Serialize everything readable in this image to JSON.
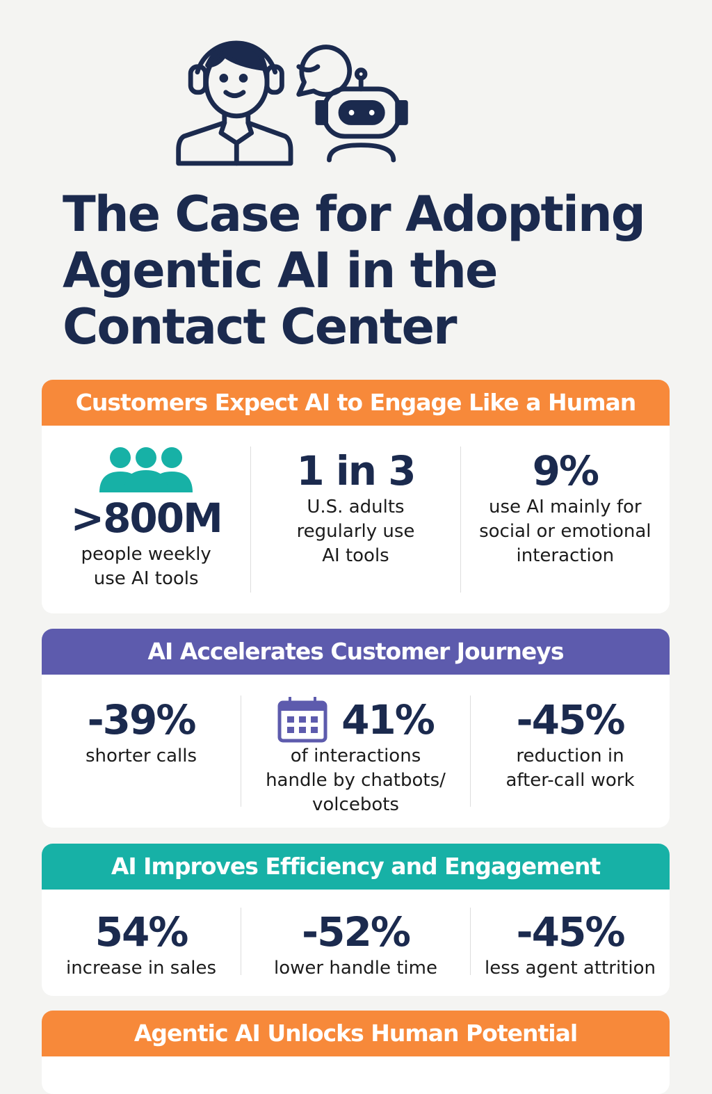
{
  "title": "The Case for Adopting Agentic AI in the Contact Center",
  "colors": {
    "navy": "#1b2a4e",
    "orange": "#f7893a",
    "purple": "#5d5bad",
    "teal": "#17b1a6"
  },
  "sections": [
    {
      "header": "Customers Expect AI to Engage Like a Human",
      "stats": [
        {
          "value": ">800M",
          "text": "people weekly use AI tools",
          "icon": "people-group-icon"
        },
        {
          "value": "1 in 3",
          "text": "U.S. adults regularly use AI tools"
        },
        {
          "value": "9%",
          "text": "use AI mainly for social or emotional interaction"
        }
      ]
    },
    {
      "header": "AI Accelerates Customer Journeys",
      "stats": [
        {
          "value": "-39%",
          "text": "shorter calls"
        },
        {
          "value": "41%",
          "text": "of interactions handle by chatbots/ volcebots",
          "icon": "calendar-icon"
        },
        {
          "value": "-45%",
          "text": "reduction in after-call work"
        }
      ]
    },
    {
      "header": "AI Improves Efficiency and Engagement",
      "stats": [
        {
          "value": "54%",
          "text": "increase in sales"
        },
        {
          "value": "-52%",
          "text": "lower handle time"
        },
        {
          "value": "-45%",
          "text": "less agent attrition"
        }
      ]
    },
    {
      "header": "Agentic AI Unlocks Human Potential"
    }
  ]
}
